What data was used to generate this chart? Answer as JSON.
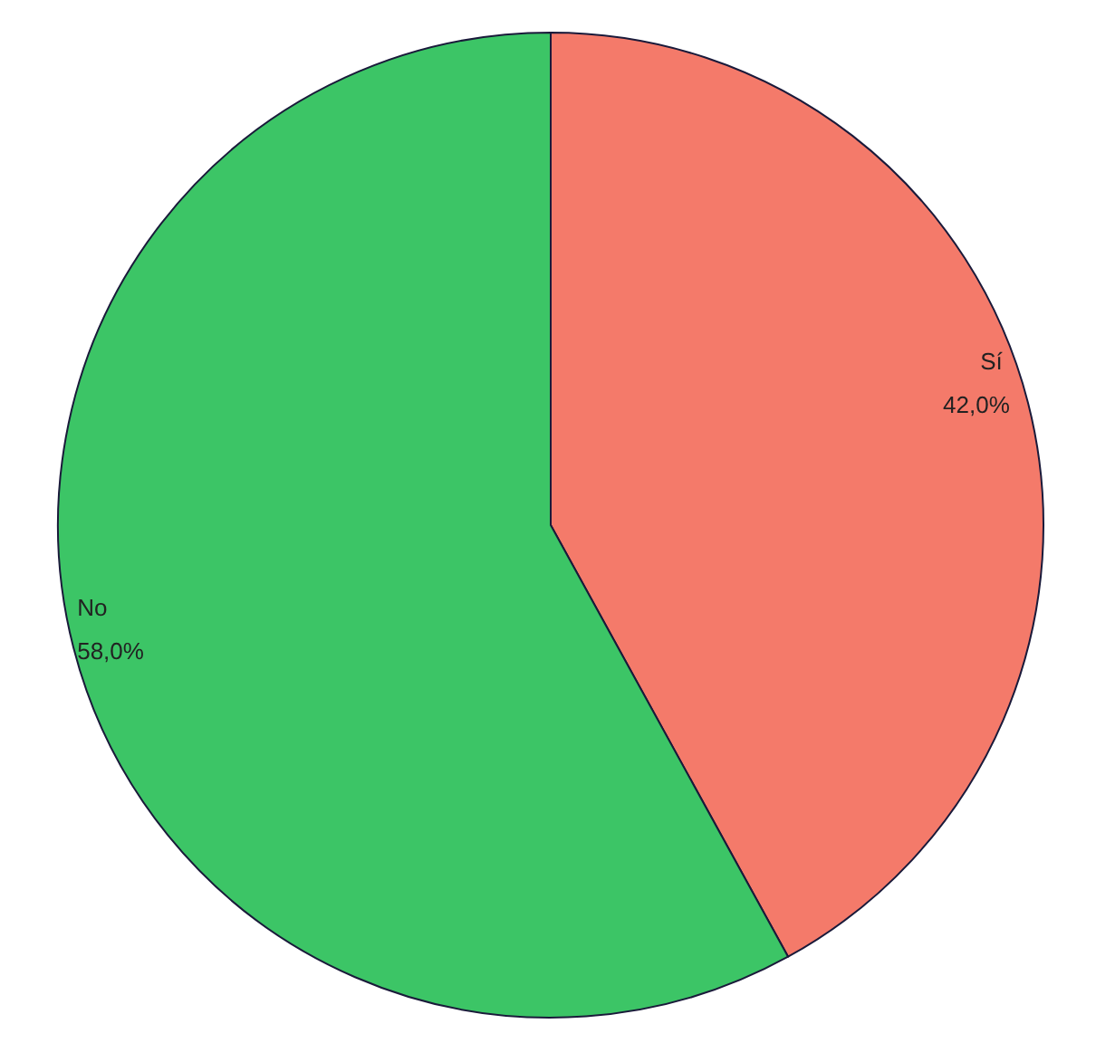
{
  "chart_data": {
    "type": "pie",
    "categories": [
      "Sí",
      "No"
    ],
    "values": [
      42.0,
      58.0
    ],
    "colors": [
      "#f47a6a",
      "#3cc566"
    ],
    "value_labels": [
      "42,0%",
      "58,0%"
    ]
  }
}
